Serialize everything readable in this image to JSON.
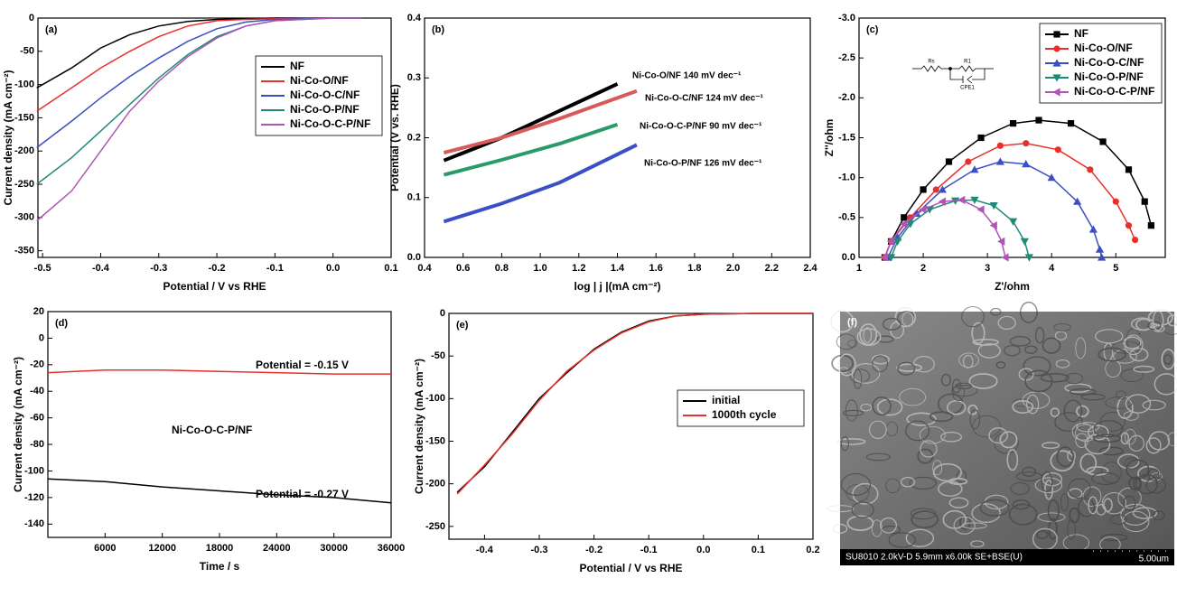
{
  "chart_data": [
    {
      "type": "line",
      "label": "(a)",
      "xlabel": "Potential / V vs RHE",
      "ylabel": "Current density (mA cm⁻²)",
      "x": [
        -0.51,
        -0.45,
        -0.4,
        -0.35,
        -0.3,
        -0.25,
        -0.2,
        -0.15,
        -0.1,
        0,
        0.05
      ],
      "series": [
        {
          "name": "NF",
          "color": "#000000",
          "values": [
            -105,
            -75,
            -45,
            -25,
            -12,
            -5,
            -2,
            -1,
            0,
            0,
            0
          ]
        },
        {
          "name": "Ni-Co-O/NF",
          "color": "#e8302a",
          "values": [
            -140,
            -105,
            -75,
            -50,
            -28,
            -12,
            -4,
            -2,
            -1,
            0,
            0
          ]
        },
        {
          "name": "Ni-Co-O-C/NF",
          "color": "#3b4fc4",
          "values": [
            -195,
            -155,
            -120,
            -88,
            -60,
            -35,
            -16,
            -6,
            -2,
            0,
            0
          ]
        },
        {
          "name": "Ni-Co-O-P/NF",
          "color": "#1f8a78",
          "values": [
            -250,
            -210,
            -170,
            -130,
            -90,
            -55,
            -28,
            -12,
            -4,
            0,
            0
          ]
        },
        {
          "name": "Ni-Co-O-C-P/NF",
          "color": "#b054b8",
          "values": [
            -305,
            -260,
            -200,
            -140,
            -95,
            -58,
            -30,
            -12,
            -4,
            0,
            0
          ]
        }
      ],
      "xlim": [
        -0.508,
        0.1
      ],
      "ylim": [
        -360,
        0
      ],
      "xticks": [
        -0.5,
        -0.4,
        -0.3,
        -0.2,
        -0.1,
        {
          "value": 0,
          "label": "0.0"
        },
        0.1
      ],
      "yticks": [
        0,
        -50,
        -100,
        -150,
        -200,
        -250,
        -300,
        -350
      ],
      "legend": "upper right"
    },
    {
      "type": "line",
      "label": "(b)",
      "xlabel": "log | j |(mA cm⁻²)",
      "ylabel": "Potential (V vs. RHE)",
      "series": [
        {
          "color": "#000000",
          "x": [
            0.5,
            0.8,
            1.1,
            1.4
          ],
          "values": [
            0.162,
            0.2,
            0.245,
            0.29
          ]
        },
        {
          "color": "#d65a5a",
          "x": [
            0.5,
            0.8,
            1.1,
            1.5
          ],
          "values": [
            0.175,
            0.2,
            0.232,
            0.278
          ]
        },
        {
          "color": "#2a9a6a",
          "x": [
            0.5,
            0.8,
            1.1,
            1.4
          ],
          "values": [
            0.138,
            0.163,
            0.19,
            0.222
          ]
        },
        {
          "color": "#3b4fc4",
          "x": [
            0.5,
            0.8,
            1.1,
            1.5
          ],
          "values": [
            0.06,
            0.09,
            0.125,
            0.188
          ]
        }
      ],
      "annotations": [
        "Ni-Co-O/NF 140 mV dec⁻¹",
        "Ni-Co-O-C/NF 124 mV dec⁻¹",
        "Ni-Co-O-C-P/NF 90 mV dec⁻¹",
        "Ni-Co-O-P/NF 126 mV dec⁻¹"
      ],
      "xlim": [
        0.4,
        2.4
      ],
      "ylim": [
        0,
        0.4
      ],
      "xticks": [
        0.4,
        0.6,
        0.8,
        {
          "value": 1,
          "label": "1.0"
        },
        1.2,
        1.4,
        1.6,
        1.8,
        {
          "value": 2,
          "label": "2.0"
        },
        2.2,
        2.4
      ],
      "yticks": [
        {
          "value": 0,
          "label": "0.0"
        },
        0.1,
        0.2,
        0.3,
        0.4
      ]
    },
    {
      "type": "line",
      "label": "(c)",
      "xlabel": "Z'/ohm",
      "ylabel": "Z''/ohm",
      "inset_labels": [
        "Rs",
        "R1",
        "CPE1"
      ],
      "series": [
        {
          "name": "NF",
          "color": "#000000",
          "marker": "square",
          "x": [
            1.4,
            1.5,
            1.7,
            2.0,
            2.4,
            2.9,
            3.4,
            3.8,
            4.3,
            4.8,
            5.2,
            5.45,
            5.55
          ],
          "values": [
            0,
            -0.2,
            -0.5,
            -0.85,
            -1.2,
            -1.5,
            -1.68,
            -1.72,
            -1.68,
            -1.45,
            -1.1,
            -0.7,
            -0.4
          ]
        },
        {
          "name": "Ni-Co-O/NF",
          "color": "#e8302a",
          "marker": "circle",
          "x": [
            1.4,
            1.5,
            1.8,
            2.2,
            2.7,
            3.2,
            3.6,
            4.1,
            4.6,
            5.0,
            5.2,
            5.3
          ],
          "values": [
            0,
            -0.2,
            -0.5,
            -0.85,
            -1.2,
            -1.4,
            -1.43,
            -1.35,
            -1.1,
            -0.7,
            -0.4,
            -0.22
          ]
        },
        {
          "name": "Ni-Co-O-C/NF",
          "color": "#3b4fc4",
          "marker": "triangle-up",
          "x": [
            1.45,
            1.6,
            1.9,
            2.3,
            2.8,
            3.2,
            3.6,
            4.0,
            4.4,
            4.65,
            4.75,
            4.78
          ],
          "values": [
            0,
            -0.25,
            -0.55,
            -0.85,
            -1.1,
            -1.2,
            -1.17,
            -1.0,
            -0.7,
            -0.35,
            -0.1,
            0
          ]
        },
        {
          "name": "Ni-Co-O-P/NF",
          "color": "#1f8a78",
          "marker": "triangle-down",
          "x": [
            1.5,
            1.6,
            1.8,
            2.1,
            2.5,
            2.8,
            3.1,
            3.4,
            3.58,
            3.65
          ],
          "values": [
            0,
            -0.2,
            -0.42,
            -0.6,
            -0.71,
            -0.72,
            -0.65,
            -0.45,
            -0.2,
            0
          ]
        },
        {
          "name": "Ni-Co-O-C-P/NF",
          "color": "#b054b8",
          "marker": "triangle-left",
          "x": [
            1.4,
            1.5,
            1.7,
            2.0,
            2.3,
            2.6,
            2.9,
            3.1,
            3.22,
            3.28
          ],
          "values": [
            0,
            -0.2,
            -0.42,
            -0.6,
            -0.7,
            -0.72,
            -0.6,
            -0.4,
            -0.2,
            0
          ]
        }
      ],
      "xlim": [
        1,
        5.77
      ],
      "ylim": [
        0,
        -3
      ],
      "xticks": [
        1,
        2,
        3,
        4,
        5
      ],
      "yticks": [
        {
          "value": 0,
          "label": "0.0"
        },
        -0.5,
        {
          "value": -1,
          "label": "-1.0"
        },
        -1.5,
        {
          "value": -2,
          "label": "-2.0"
        },
        -2.5,
        {
          "value": -3,
          "label": "-3.0"
        }
      ],
      "legend": "upper right"
    },
    {
      "type": "line",
      "label": "(d)",
      "xlabel": "Time / s",
      "ylabel": "Current density (mA cm⁻²)",
      "x": [
        0,
        6000,
        12000,
        18000,
        24000,
        30000,
        36000
      ],
      "series": [
        {
          "color": "#e8302a",
          "values": [
            -26,
            -24,
            -24,
            -25,
            -26,
            -27,
            -27
          ]
        },
        {
          "color": "#000000",
          "values": [
            -106,
            -108,
            -112,
            -115,
            -118,
            -120,
            -124
          ]
        }
      ],
      "annotations": [
        "Potential = -0.15 V",
        "Ni-Co-O-C-P/NF",
        "Potential = -0.27 V"
      ],
      "xlim": [
        0,
        36000
      ],
      "ylim": [
        -150,
        20
      ],
      "xticks": [
        6000,
        12000,
        18000,
        24000,
        30000,
        36000
      ],
      "yticks": [
        20,
        0,
        -20,
        -40,
        -60,
        -80,
        -100,
        -120,
        -140
      ]
    },
    {
      "type": "line",
      "label": "(e)",
      "xlabel": "Potential / V vs RHE",
      "ylabel": "Current density (mA cm⁻²)",
      "x": [
        -0.45,
        -0.4,
        -0.35,
        -0.3,
        -0.25,
        -0.2,
        -0.15,
        -0.1,
        -0.05,
        0,
        0.1,
        0.2
      ],
      "series": [
        {
          "name": "initial",
          "color": "#000000",
          "values": [
            -210,
            -180,
            -140,
            -100,
            -70,
            -42,
            -22,
            -9,
            -3,
            -1,
            0,
            0
          ]
        },
        {
          "name": "1000th cycle",
          "color": "#e8302a",
          "values": [
            -212,
            -178,
            -142,
            -102,
            -68,
            -43,
            -23,
            -10,
            -3,
            -1,
            0,
            0
          ]
        }
      ],
      "xlim": [
        -0.465,
        0.2
      ],
      "ylim": [
        -265,
        0
      ],
      "xticks": [
        -0.4,
        -0.3,
        -0.2,
        -0.1,
        {
          "value": 0,
          "label": "0.0"
        },
        0.1,
        0.2
      ],
      "yticks": [
        0,
        -50,
        -100,
        -150,
        -200,
        -250
      ],
      "legend": "center right"
    },
    {
      "type": "image",
      "label": "(f)",
      "caption": "SU8010 2.0kV-D 5.9mm x6.00k SE+BSE(U)",
      "scale_bar": "5.00um"
    }
  ]
}
